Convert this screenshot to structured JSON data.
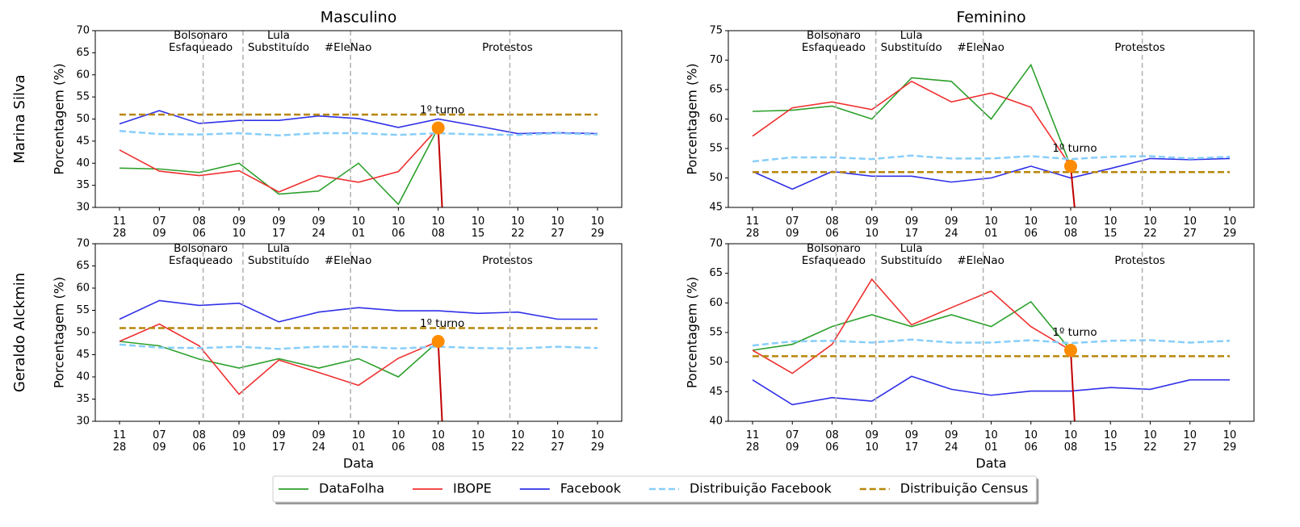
{
  "chart_data": [
    {
      "type": "line",
      "title": "Masculino",
      "row_label": "Marina Silva",
      "ylabel": "Porcentagem (%)",
      "categories": [
        "11\n28",
        "07\n09",
        "08\n06",
        "09\n10",
        "09\n17",
        "09\n24",
        "10\n01",
        "10\n06",
        "10\n08",
        "10\n15",
        "10\n22",
        "10\n27",
        "10\n29"
      ],
      "ylim": [
        30,
        70
      ],
      "yticks": [
        30,
        35,
        40,
        45,
        50,
        55,
        60,
        65,
        70
      ],
      "series": [
        {
          "name": "DataFolha",
          "color": "#2ca02c",
          "style": "solid",
          "values": [
            38.9,
            38.7,
            37.9,
            40,
            33,
            33.7,
            40,
            30.7,
            48,
            null,
            null,
            null,
            null
          ]
        },
        {
          "name": "IBOPE",
          "color": "#f03030",
          "style": "solid",
          "values": [
            43,
            38.2,
            37.2,
            38.3,
            33.5,
            37.2,
            35.7,
            38.1,
            48,
            null,
            null,
            null,
            null
          ]
        },
        {
          "name": "Facebook",
          "color": "#3030e8",
          "style": "solid",
          "values": [
            48.9,
            51.9,
            49,
            49.7,
            49.7,
            50.7,
            50.1,
            48.1,
            50,
            48.4,
            46.7,
            46.9,
            46.7
          ]
        },
        {
          "name": "Distribuição Facebook",
          "color": "#87cefa",
          "style": "dashed",
          "values": [
            47.3,
            46.6,
            46.5,
            46.8,
            46.3,
            46.8,
            46.8,
            46.4,
            46.8,
            46.5,
            46.4,
            46.8,
            46.5
          ]
        },
        {
          "name": "Distribuição Census",
          "color": "#b8860b",
          "style": "dashed",
          "values": [
            51,
            51,
            51,
            51,
            51,
            51,
            51,
            51,
            51,
            51,
            51,
            51,
            51
          ]
        }
      ],
      "events": [
        {
          "label": "Bolsonaro\nEsfaqueado",
          "x": 2.1
        },
        {
          "label": "Lula\nSubstituído",
          "x": 3.1
        },
        {
          "label": "#EleNao",
          "x": 5.8
        },
        {
          "label": "Protestos",
          "x": 9.8
        }
      ],
      "annotation": {
        "text": "1º turno",
        "x": 8,
        "y": 48,
        "color": "#ff8c00"
      }
    },
    {
      "type": "line",
      "title": "Feminino",
      "ylabel": "Porcentagem (%)",
      "categories": [
        "11\n28",
        "07\n09",
        "08\n06",
        "09\n10",
        "09\n17",
        "09\n24",
        "10\n01",
        "10\n06",
        "10\n08",
        "10\n15",
        "10\n22",
        "10\n27",
        "10\n29"
      ],
      "ylim": [
        45,
        75
      ],
      "yticks": [
        45,
        50,
        55,
        60,
        65,
        70,
        75
      ],
      "series": [
        {
          "name": "DataFolha",
          "color": "#2ca02c",
          "style": "solid",
          "values": [
            61.3,
            61.5,
            62.2,
            60,
            67,
            66.4,
            60,
            69.2,
            52,
            null,
            null,
            null,
            null
          ]
        },
        {
          "name": "IBOPE",
          "color": "#f03030",
          "style": "solid",
          "values": [
            57.1,
            61.9,
            62.9,
            61.6,
            66.4,
            62.9,
            64.4,
            62,
            52,
            null,
            null,
            null,
            null
          ]
        },
        {
          "name": "Facebook",
          "color": "#3030e8",
          "style": "solid",
          "values": [
            51.1,
            48.1,
            51.1,
            50.3,
            50.3,
            49.3,
            50,
            52,
            50,
            51.6,
            53.3,
            53.1,
            53.3
          ]
        },
        {
          "name": "Distribuição Facebook",
          "color": "#87cefa",
          "style": "dashed",
          "values": [
            52.8,
            53.5,
            53.5,
            53.2,
            53.8,
            53.3,
            53.3,
            53.7,
            53.2,
            53.6,
            53.7,
            53.3,
            53.6
          ]
        },
        {
          "name": "Distribuição Census",
          "color": "#b8860b",
          "style": "dashed",
          "values": [
            51,
            51,
            51,
            51,
            51,
            51,
            51,
            51,
            51,
            51,
            51,
            51,
            51
          ]
        }
      ],
      "events": [
        {
          "label": "Bolsonaro\nEsfaqueado",
          "x": 2.1
        },
        {
          "label": "Lula\nSubstituído",
          "x": 3.1
        },
        {
          "label": "#EleNao",
          "x": 5.8
        },
        {
          "label": "Protestos",
          "x": 9.8
        }
      ],
      "annotation": {
        "text": "1º turno",
        "x": 8,
        "y": 52,
        "color": "#ff8c00"
      }
    },
    {
      "type": "line",
      "row_label": "Geraldo Alckmin",
      "ylabel": "Porcentagem (%)",
      "xlabel": "Data",
      "categories": [
        "11\n28",
        "07\n09",
        "08\n06",
        "09\n10",
        "09\n17",
        "09\n24",
        "10\n01",
        "10\n06",
        "10\n08",
        "10\n15",
        "10\n22",
        "10\n27",
        "10\n29"
      ],
      "ylim": [
        30,
        70
      ],
      "yticks": [
        30,
        35,
        40,
        45,
        50,
        55,
        60,
        65,
        70
      ],
      "series": [
        {
          "name": "DataFolha",
          "color": "#2ca02c",
          "style": "solid",
          "values": [
            48,
            47,
            44,
            42,
            44.1,
            42,
            44.1,
            40,
            48,
            null,
            null,
            null,
            null
          ]
        },
        {
          "name": "IBOPE",
          "color": "#f03030",
          "style": "solid",
          "values": [
            48,
            51.9,
            47,
            36.1,
            43.8,
            41,
            38.1,
            44.2,
            48,
            null,
            null,
            null,
            null
          ]
        },
        {
          "name": "Facebook",
          "color": "#3030e8",
          "style": "solid",
          "values": [
            53,
            57.2,
            56.1,
            56.6,
            52.4,
            54.6,
            55.6,
            54.9,
            54.9,
            54.3,
            54.6,
            53,
            53
          ]
        },
        {
          "name": "Distribuição Facebook",
          "color": "#87cefa",
          "style": "dashed",
          "values": [
            47.3,
            46.6,
            46.5,
            46.8,
            46.3,
            46.8,
            46.8,
            46.4,
            46.8,
            46.5,
            46.4,
            46.8,
            46.5
          ]
        },
        {
          "name": "Distribuição Census",
          "color": "#b8860b",
          "style": "dashed",
          "values": [
            51,
            51,
            51,
            51,
            51,
            51,
            51,
            51,
            51,
            51,
            51,
            51,
            51
          ]
        }
      ],
      "events": [
        {
          "label": "Bolsonaro\nEsfaqueado",
          "x": 2.1
        },
        {
          "label": "Lula\nSubstituído",
          "x": 3.1
        },
        {
          "label": "#EleNao",
          "x": 5.8
        },
        {
          "label": "Protestos",
          "x": 9.8
        }
      ],
      "annotation": {
        "text": "1º turno",
        "x": 8,
        "y": 48,
        "color": "#ff8c00"
      }
    },
    {
      "type": "line",
      "ylabel": "Porcentagem (%)",
      "xlabel": "Data",
      "categories": [
        "11\n28",
        "07\n09",
        "08\n06",
        "09\n10",
        "09\n17",
        "09\n24",
        "10\n01",
        "10\n06",
        "10\n08",
        "10\n15",
        "10\n22",
        "10\n27",
        "10\n29"
      ],
      "ylim": [
        40,
        70
      ],
      "yticks": [
        40,
        45,
        50,
        55,
        60,
        65,
        70
      ],
      "series": [
        {
          "name": "DataFolha",
          "color": "#2ca02c",
          "style": "solid",
          "values": [
            52,
            53,
            56,
            58,
            56,
            58,
            56,
            60.2,
            52,
            null,
            null,
            null,
            null
          ]
        },
        {
          "name": "IBOPE",
          "color": "#f03030",
          "style": "solid",
          "values": [
            52,
            48.1,
            53,
            64,
            56.3,
            59.2,
            62,
            56,
            52,
            null,
            null,
            null,
            null
          ]
        },
        {
          "name": "Facebook",
          "color": "#3030e8",
          "style": "solid",
          "values": [
            47,
            42.8,
            44,
            43.4,
            47.6,
            45.4,
            44.4,
            45.1,
            45.1,
            45.7,
            45.4,
            47,
            47
          ]
        },
        {
          "name": "Distribuição Facebook",
          "color": "#87cefa",
          "style": "dashed",
          "values": [
            52.8,
            53.5,
            53.6,
            53.3,
            53.8,
            53.3,
            53.3,
            53.7,
            53.2,
            53.6,
            53.7,
            53.3,
            53.6
          ]
        },
        {
          "name": "Distribuição Census",
          "color": "#b8860b",
          "style": "dashed",
          "values": [
            51,
            51,
            51,
            51,
            51,
            51,
            51,
            51,
            51,
            51,
            51,
            51,
            51
          ]
        }
      ],
      "events": [
        {
          "label": "Bolsonaro\nEsfaqueado",
          "x": 2.1
        },
        {
          "label": "Lula\nSubstituído",
          "x": 3.1
        },
        {
          "label": "#EleNao",
          "x": 5.8
        },
        {
          "label": "Protestos",
          "x": 9.8
        }
      ],
      "annotation": {
        "text": "1º turno",
        "x": 8,
        "y": 52,
        "color": "#ff8c00"
      }
    }
  ]
}
